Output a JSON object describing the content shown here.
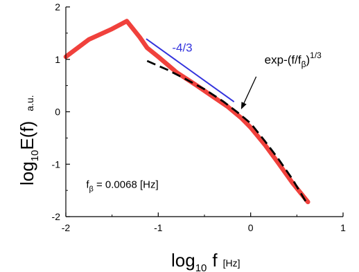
{
  "chart_data": {
    "type": "line",
    "xlabel": {
      "main": "log",
      "sub": "10",
      "var": "f",
      "unit": "[Hz]"
    },
    "ylabel": {
      "main": "log",
      "sub": "10",
      "var": "E(f)",
      "unit": "a.u."
    },
    "xlim": [
      -2,
      1
    ],
    "ylim": [
      -2,
      2
    ],
    "x_ticks": [
      -2,
      -1,
      0,
      1
    ],
    "y_ticks": [
      -2,
      -1,
      0,
      1,
      2
    ],
    "x_tick_labels": [
      "-2",
      "-1",
      "0",
      "1"
    ],
    "y_tick_labels": [
      "-2",
      "-1",
      "0",
      "1",
      "2"
    ],
    "grid": false,
    "series": [
      {
        "style": "solid",
        "color": "#f0413c",
        "points": [
          {
            "x": -2.0,
            "y": 1.05
          },
          {
            "x": -1.75,
            "y": 1.38
          },
          {
            "x": -1.5,
            "y": 1.58
          },
          {
            "x": -1.34,
            "y": 1.73
          },
          {
            "x": -1.2,
            "y": 1.42
          },
          {
            "x": -1.12,
            "y": 1.22
          },
          {
            "x": -1.0,
            "y": 1.05
          },
          {
            "x": -0.8,
            "y": 0.75
          },
          {
            "x": -0.6,
            "y": 0.52
          },
          {
            "x": -0.4,
            "y": 0.28
          },
          {
            "x": -0.25,
            "y": 0.1
          },
          {
            "x": -0.1,
            "y": -0.12
          },
          {
            "x": 0.0,
            "y": -0.3
          },
          {
            "x": 0.15,
            "y": -0.62
          },
          {
            "x": 0.3,
            "y": -0.98
          },
          {
            "x": 0.45,
            "y": -1.35
          },
          {
            "x": 0.62,
            "y": -1.72
          }
        ]
      },
      {
        "style": "dashed",
        "color": "#000000",
        "points": [
          {
            "x": -1.12,
            "y": 0.97
          },
          {
            "x": -0.9,
            "y": 0.8
          },
          {
            "x": -0.7,
            "y": 0.62
          },
          {
            "x": -0.5,
            "y": 0.43
          },
          {
            "x": -0.3,
            "y": 0.2
          },
          {
            "x": -0.15,
            "y": 0.0
          },
          {
            "x": 0.0,
            "y": -0.22
          },
          {
            "x": 0.15,
            "y": -0.55
          },
          {
            "x": 0.3,
            "y": -0.9
          },
          {
            "x": 0.45,
            "y": -1.28
          },
          {
            "x": 0.62,
            "y": -1.78
          }
        ]
      },
      {
        "style": "solid",
        "color": "#3333dd",
        "points": [
          {
            "x": -1.13,
            "y": 1.39
          },
          {
            "x": -0.18,
            "y": 0.19
          }
        ]
      }
    ],
    "annotations": {
      "slope_label": {
        "text": "-4/3",
        "color": "#3333dd",
        "x": -0.85,
        "y": 1.15
      },
      "fit_label": {
        "base": "exp-(f/f",
        "sub": "β",
        "close": ")",
        "sup": "1/3",
        "x": 0.15,
        "y": 0.92
      },
      "arrow": {
        "from": {
          "x": 0.06,
          "y": 0.67
        },
        "to": {
          "x": -0.1,
          "y": 0.06
        }
      },
      "param_label": {
        "base": "f",
        "sub": "β",
        "rest": " = 0.0068  [Hz]",
        "x": -1.78,
        "y": -1.45
      }
    }
  }
}
